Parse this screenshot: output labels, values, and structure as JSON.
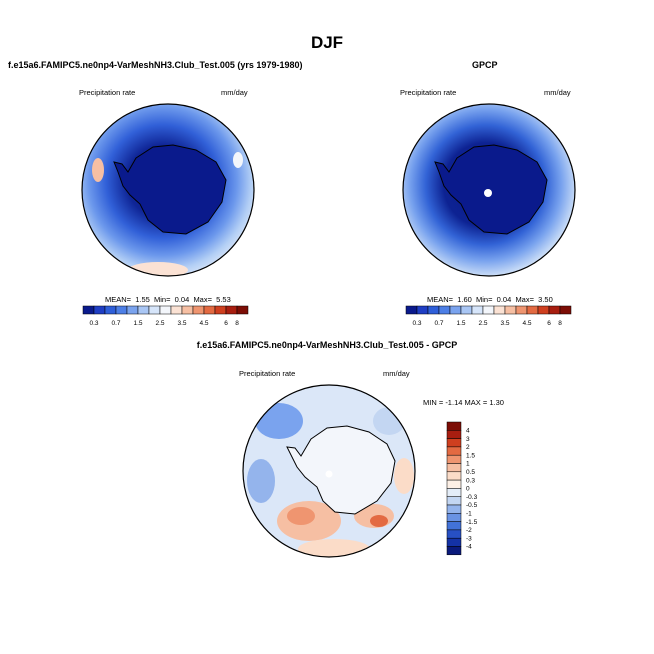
{
  "page": {
    "title": "DJF"
  },
  "chart_data": [
    {
      "type": "heatmap",
      "projection": "south-polar-stereographic",
      "title": "f.e15a6.FAMIPC5.ne0np4-VarMeshNH3.Club_Test.005 (yrs 1979-1980)",
      "left_label": "Precipitation rate",
      "right_label": "mm/day",
      "stats": {
        "mean_label": "MEAN=",
        "mean": "1.55",
        "min_label": "Min=",
        "min": "0.04",
        "max_label": "Max=",
        "max": "5.53"
      },
      "colorbar": {
        "orientation": "horizontal",
        "levels": [
          "0.3",
          "0.7",
          "1.5",
          "2.5",
          "3.5",
          "4.5",
          "6",
          "8"
        ],
        "colors": [
          "#0a1a8c",
          "#1f3ec4",
          "#2f5fd9",
          "#4d7fe6",
          "#7aa3ee",
          "#a9c6f4",
          "#d6e5fa",
          "#f3f6fb",
          "#fbe2d4",
          "#f6bfa3",
          "#ef9570",
          "#e36a42",
          "#cf3f1f",
          "#a81e10",
          "#7c0d05"
        ]
      }
    },
    {
      "type": "heatmap",
      "projection": "south-polar-stereographic",
      "title": "GPCP",
      "left_label": "Precipitation rate",
      "right_label": "mm/day",
      "stats": {
        "mean_label": "MEAN=",
        "mean": "1.60",
        "min_label": "Min=",
        "min": "0.04",
        "max_label": "Max=",
        "max": "3.50"
      },
      "colorbar": {
        "orientation": "horizontal",
        "levels": [
          "0.3",
          "0.7",
          "1.5",
          "2.5",
          "3.5",
          "4.5",
          "6",
          "8"
        ],
        "colors": [
          "#0a1a8c",
          "#1f3ec4",
          "#2f5fd9",
          "#4d7fe6",
          "#7aa3ee",
          "#a9c6f4",
          "#d6e5fa",
          "#f3f6fb",
          "#fbe2d4",
          "#f6bfa3",
          "#ef9570",
          "#e36a42",
          "#cf3f1f",
          "#a81e10",
          "#7c0d05"
        ]
      }
    },
    {
      "type": "heatmap",
      "projection": "south-polar-stereographic",
      "title": "f.e15a6.FAMIPC5.ne0np4-VarMeshNH3.Club_Test.005 - GPCP",
      "left_label": "Precipitation rate",
      "right_label": "mm/day",
      "stats": {
        "min_label": "MIN =",
        "min": "-1.14",
        "max_label": "MAX =",
        "max": "1.30"
      },
      "colorbar": {
        "orientation": "vertical",
        "levels": [
          "4",
          "3",
          "2",
          "1.5",
          "1",
          "0.5",
          "0.3",
          "0",
          "-0.3",
          "-0.5",
          "-1",
          "-1.5",
          "-2",
          "-3",
          "-4"
        ],
        "colors": [
          "#7c0d05",
          "#a81e10",
          "#cf3f1f",
          "#e36a42",
          "#ef9570",
          "#f6bfa3",
          "#fbdcc8",
          "#fdf0e6",
          "#e4edf8",
          "#c3d6f2",
          "#94b4ec",
          "#6a93e4",
          "#4272d8",
          "#2750c4",
          "#1432a6",
          "#0a1a7c"
        ]
      }
    }
  ]
}
